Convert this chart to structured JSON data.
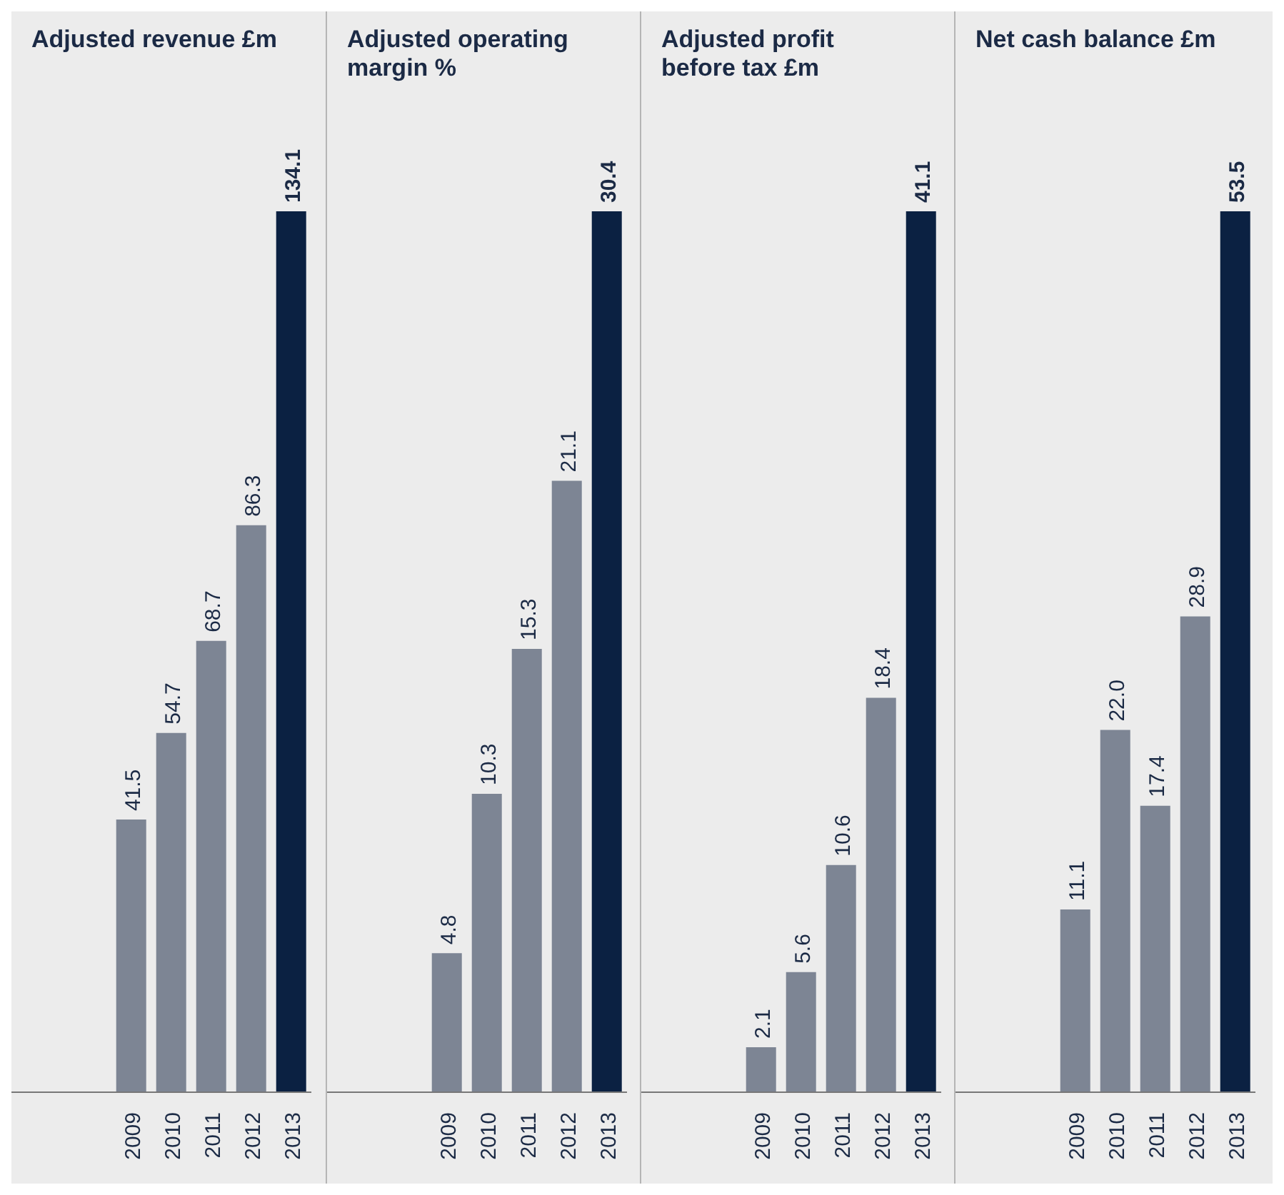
{
  "chart_data": [
    {
      "type": "bar",
      "title": "Adjusted revenue £m",
      "categories": [
        "2009",
        "2010",
        "2011",
        "2012",
        "2013"
      ],
      "values": [
        41.5,
        54.7,
        68.7,
        86.3,
        134.1
      ],
      "value_labels": [
        "41.5",
        "54.7",
        "68.7",
        "86.3",
        "134.1"
      ],
      "colors": [
        "#7d8594",
        "#7d8594",
        "#7d8594",
        "#7d8594",
        "#0b2142"
      ]
    },
    {
      "type": "bar",
      "title": "Adjusted operating margin %",
      "categories": [
        "2009",
        "2010",
        "2011",
        "2012",
        "2013"
      ],
      "values": [
        4.8,
        10.3,
        15.3,
        21.1,
        30.4
      ],
      "value_labels": [
        "4.8",
        "10.3",
        "15.3",
        "21.1",
        "30.4"
      ],
      "colors": [
        "#7d8594",
        "#7d8594",
        "#7d8594",
        "#7d8594",
        "#0b2142"
      ]
    },
    {
      "type": "bar",
      "title": "Adjusted profit before tax £m",
      "categories": [
        "2009",
        "2010",
        "2011",
        "2012",
        "2013"
      ],
      "values": [
        2.1,
        5.6,
        10.6,
        18.4,
        41.1
      ],
      "value_labels": [
        "2.1",
        "5.6",
        "10.6",
        "18.4",
        "41.1"
      ],
      "colors": [
        "#7d8594",
        "#7d8594",
        "#7d8594",
        "#7d8594",
        "#0b2142"
      ]
    },
    {
      "type": "bar",
      "title": "Net cash balance £m",
      "categories": [
        "2009",
        "2010",
        "2011",
        "2012",
        "2013"
      ],
      "values": [
        11.1,
        22.0,
        17.4,
        28.9,
        53.5
      ],
      "value_labels": [
        "11.1",
        "22.0",
        "17.4",
        "28.9",
        "53.5"
      ],
      "colors": [
        "#7d8594",
        "#7d8594",
        "#7d8594",
        "#7d8594",
        "#0b2142"
      ]
    }
  ]
}
